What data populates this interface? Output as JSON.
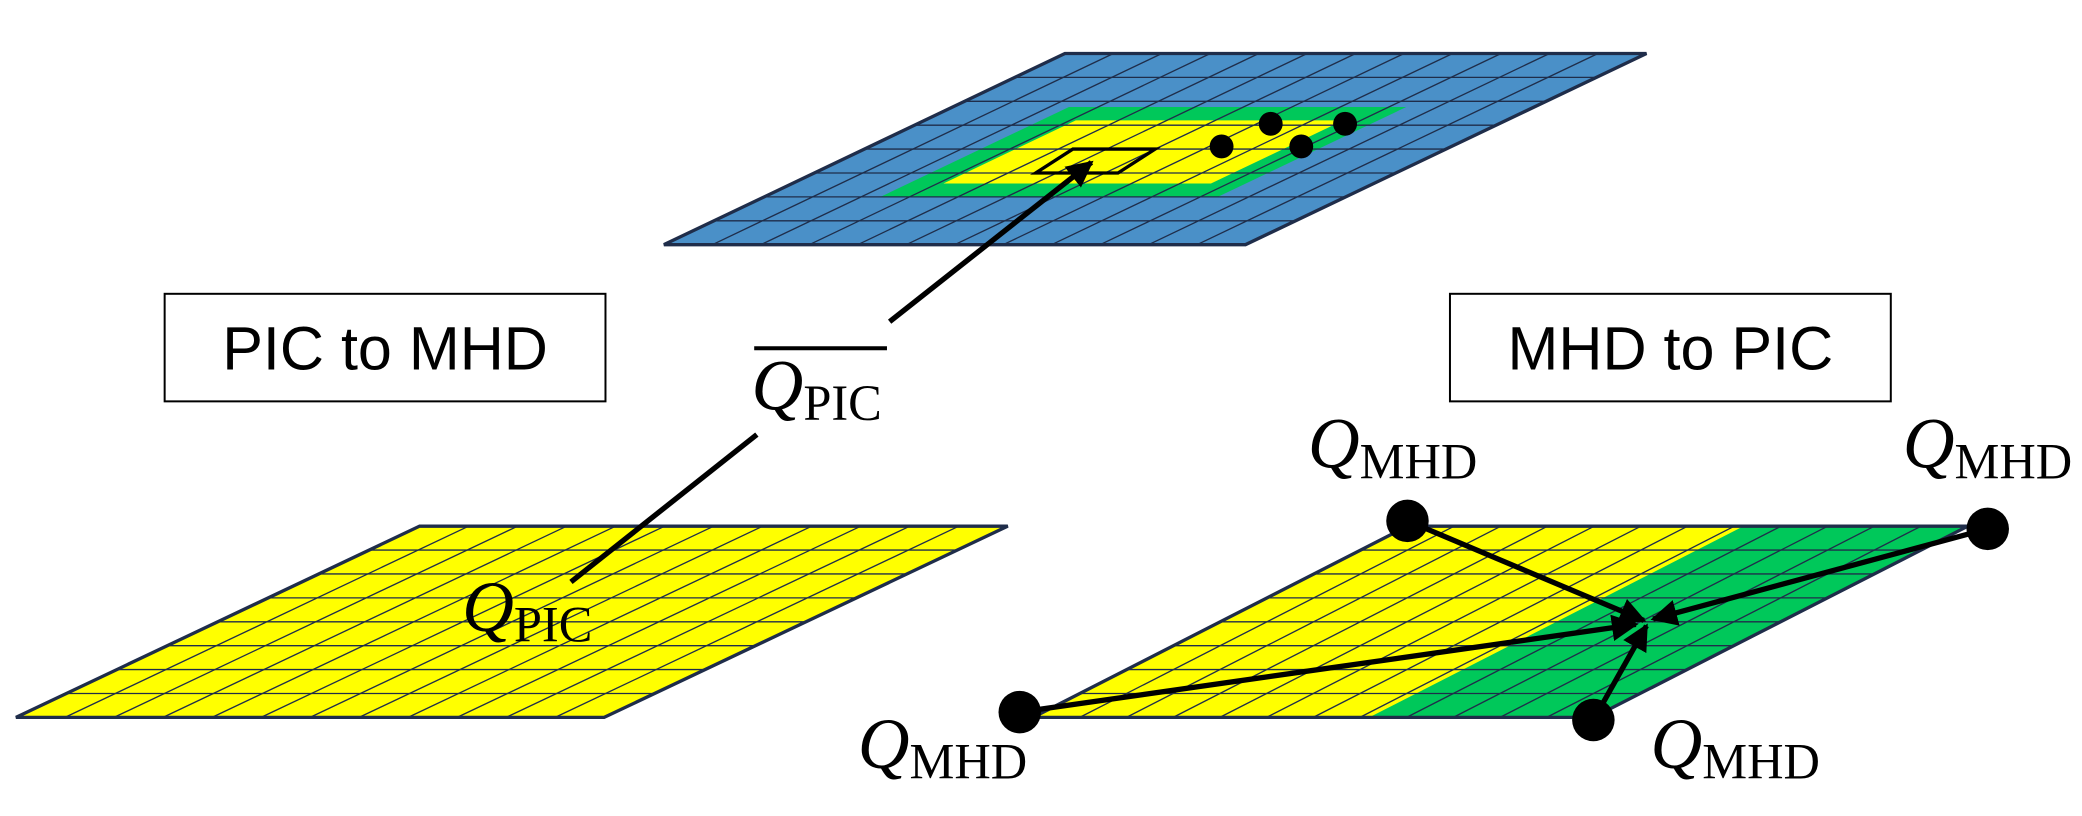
{
  "boxes": [
    {
      "label": "PIC to MHD"
    },
    {
      "label": "MHD to PIC"
    }
  ],
  "labels": [
    {
      "symbol": "Q",
      "subscript": "PIC"
    },
    {
      "symbol": "Q",
      "subscript": "PIC"
    },
    {
      "symbol": "Q",
      "subscript": "MHD"
    },
    {
      "symbol": "Q",
      "subscript": "MHD"
    },
    {
      "symbol": "Q",
      "subscript": "MHD"
    },
    {
      "symbol": "Q",
      "subscript": "MHD"
    }
  ]
}
